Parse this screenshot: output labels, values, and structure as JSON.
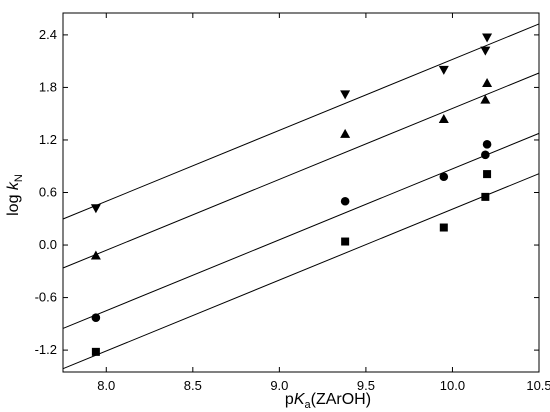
{
  "chart_data": {
    "type": "scatter",
    "xlabel": {
      "pre": "p",
      "main": "K",
      "sub": "a",
      "post": "(ZArOH)"
    },
    "ylabel": {
      "pre": "log ",
      "main": "k",
      "sub": "N"
    },
    "xlim": [
      7.75,
      10.5
    ],
    "ylim": [
      -1.45,
      2.65
    ],
    "x_ticks": [
      {
        "value": 8.0,
        "label": "8.0"
      },
      {
        "value": 8.5,
        "label": "8.5"
      },
      {
        "value": 9.0,
        "label": "9.0"
      },
      {
        "value": 9.5,
        "label": "9.5"
      },
      {
        "value": 10.0,
        "label": "10.0"
      },
      {
        "value": 10.5,
        "label": "10.5"
      }
    ],
    "y_ticks": [
      {
        "value": -1.2,
        "label": "-1.2"
      },
      {
        "value": -0.6,
        "label": "-0.6"
      },
      {
        "value": 0.0,
        "label": "0.0"
      },
      {
        "value": 0.6,
        "label": "0.6"
      },
      {
        "value": 1.2,
        "label": "1.2"
      },
      {
        "value": 1.8,
        "label": "1.8"
      },
      {
        "value": 2.4,
        "label": "2.4"
      }
    ],
    "series": [
      {
        "marker": "triangle-down",
        "points": [
          [
            7.94,
            0.42
          ],
          [
            9.38,
            1.72
          ],
          [
            9.95,
            2.0
          ],
          [
            10.19,
            2.22
          ],
          [
            10.2,
            2.37
          ]
        ],
        "fit": {
          "slope": 0.81,
          "intercept": -5.98
        }
      },
      {
        "marker": "triangle-up",
        "points": [
          [
            7.94,
            -0.12
          ],
          [
            9.38,
            1.27
          ],
          [
            9.95,
            1.44
          ],
          [
            10.19,
            1.66
          ],
          [
            10.2,
            1.85
          ]
        ],
        "fit": {
          "slope": 0.81,
          "intercept": -6.54
        }
      },
      {
        "marker": "circle",
        "points": [
          [
            7.94,
            -0.83
          ],
          [
            9.38,
            0.5
          ],
          [
            9.95,
            0.78
          ],
          [
            10.19,
            1.03
          ],
          [
            10.2,
            1.15
          ]
        ],
        "fit": {
          "slope": 0.81,
          "intercept": -7.23
        }
      },
      {
        "marker": "square",
        "points": [
          [
            7.94,
            -1.22
          ],
          [
            9.38,
            0.04
          ],
          [
            9.95,
            0.2
          ],
          [
            10.19,
            0.55
          ],
          [
            10.2,
            0.81
          ]
        ],
        "fit": {
          "slope": 0.81,
          "intercept": -7.69
        }
      }
    ],
    "grid": false,
    "legend": "none",
    "colors": {
      "marker": "#000000",
      "line": "#000000"
    }
  }
}
